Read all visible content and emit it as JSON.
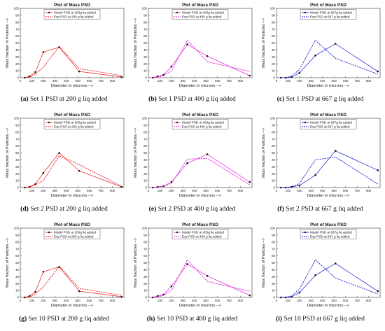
{
  "chart_data": [
    {
      "type": "line",
      "panel": "a",
      "title": "Plot of Mass PSD",
      "xlabel": "Diameter in microns -->",
      "ylabel": "Mass fraction of Particles -->",
      "xlim": [
        0,
        900
      ],
      "ylim": [
        0,
        100
      ],
      "xticks": [
        0,
        100,
        200,
        300,
        400,
        500,
        600,
        700,
        800
      ],
      "yticks": [
        0,
        10,
        20,
        30,
        40,
        50,
        60,
        70,
        80,
        90,
        100
      ],
      "legend_position": "top",
      "color": "#e8161a",
      "caption_label": "(a)",
      "caption_text": " Set 1 PSD at 200 g liq added",
      "series": [
        {
          "name": "Model PSD at 200g liq added",
          "style": "solid-dot",
          "x": [
            38,
            80,
            131,
            200,
            338,
            512,
            880
          ],
          "y": [
            0,
            2,
            8,
            37,
            44,
            9,
            1
          ]
        },
        {
          "name": "Exp PSD at 200 g liq added",
          "style": "dashed",
          "x": [
            38,
            80,
            131,
            200,
            338,
            512,
            880
          ],
          "y": [
            0,
            1,
            5,
            15,
            45,
            13,
            3
          ]
        }
      ]
    },
    {
      "type": "line",
      "panel": "b",
      "title": "Plot of Mass PSD",
      "xlabel": "Diameter in microns -->",
      "ylabel": "Mass fraction of Particles -->",
      "xlim": [
        0,
        900
      ],
      "ylim": [
        0,
        100
      ],
      "xticks": [
        0,
        100,
        200,
        300,
        400,
        500,
        600,
        700,
        800
      ],
      "yticks": [
        0,
        10,
        20,
        30,
        40,
        50,
        60,
        70,
        80,
        90,
        100
      ],
      "legend_position": "top",
      "color": "#e01fd8",
      "caption_label": "(b)",
      "caption_text": " Set 1 PSD at 400 g liq added",
      "series": [
        {
          "name": "Model PSD at 400g liq added",
          "style": "solid-dot",
          "x": [
            38,
            80,
            131,
            200,
            338,
            512,
            880
          ],
          "y": [
            0,
            2,
            4,
            16,
            48,
            31,
            3
          ]
        },
        {
          "name": "Exp PSD at 400 g liq added",
          "style": "dashed",
          "x": [
            38,
            80,
            131,
            200,
            338,
            512,
            880
          ],
          "y": [
            0,
            1,
            3,
            10,
            54,
            23,
            9
          ]
        }
      ]
    },
    {
      "type": "line",
      "panel": "c",
      "title": "Plot of Mass PSD",
      "xlabel": "Diameter in microns -->",
      "ylabel": "Mass fraction of Particles -->",
      "xlim": [
        0,
        900
      ],
      "ylim": [
        0,
        100
      ],
      "xticks": [
        0,
        100,
        200,
        300,
        400,
        500,
        600,
        700,
        800
      ],
      "yticks": [
        0,
        10,
        20,
        30,
        40,
        50,
        60,
        70,
        80,
        90,
        100
      ],
      "legend_position": "top",
      "color": "#1515d6",
      "caption_label": "(c)",
      "caption_text": " Set 1 PSD at 667 g liq added",
      "series": [
        {
          "name": "Model PSD at 667g liq added",
          "style": "solid-dot",
          "x": [
            38,
            80,
            131,
            200,
            338,
            512,
            880
          ],
          "y": [
            0,
            0,
            1,
            7,
            32,
            49,
            9
          ]
        },
        {
          "name": "Exp PSD at 667 g liq added",
          "style": "dashed",
          "x": [
            38,
            80,
            131,
            200,
            338,
            512,
            880
          ],
          "y": [
            0,
            0,
            2,
            12,
            54,
            28,
            5
          ]
        }
      ]
    },
    {
      "type": "line",
      "panel": "d",
      "title": "Plot of Mass PSD",
      "xlabel": "Diameter in microns -->",
      "ylabel": "Mass fraction of Particles -->",
      "xlim": [
        0,
        900
      ],
      "ylim": [
        0,
        100
      ],
      "xticks": [
        0,
        100,
        200,
        300,
        400,
        500,
        600,
        700,
        800
      ],
      "yticks": [
        0,
        10,
        20,
        30,
        40,
        50,
        60,
        70,
        80,
        90,
        100
      ],
      "legend_position": "top",
      "color": "#e8161a",
      "caption_label": "(d)",
      "caption_text": " Set 2 PSD at 200 g liq added",
      "series": [
        {
          "name": "Model PSD at 200g liq added",
          "style": "solid-dot",
          "x": [
            38,
            80,
            131,
            200,
            338,
            512,
            880
          ],
          "y": [
            0,
            1,
            5,
            21,
            50,
            24,
            1
          ]
        },
        {
          "name": "Exp PSD at 200 g liq added",
          "style": "dashed",
          "x": [
            38,
            80,
            131,
            200,
            338,
            512,
            880
          ],
          "y": [
            0,
            1,
            4,
            10,
            46,
            33,
            2
          ]
        }
      ]
    },
    {
      "type": "line",
      "panel": "e",
      "title": "Plot of Mass PSD",
      "xlabel": "Diameter in microns -->",
      "ylabel": "Mass fraction of Particles -->",
      "xlim": [
        0,
        900
      ],
      "ylim": [
        0,
        100
      ],
      "xticks": [
        0,
        100,
        200,
        300,
        400,
        500,
        600,
        700,
        800
      ],
      "yticks": [
        0,
        10,
        20,
        30,
        40,
        50,
        60,
        70,
        80,
        90,
        100
      ],
      "legend_position": "top",
      "color": "#e01fd8",
      "caption_label": "(e)",
      "caption_text": " Set 2 PSD at 400 g liq added",
      "series": [
        {
          "name": "Model PSD at 400g liq added",
          "style": "solid-dot",
          "x": [
            38,
            80,
            131,
            200,
            338,
            512,
            880
          ],
          "y": [
            0,
            1,
            2,
            8,
            35,
            48,
            8
          ]
        },
        {
          "name": "Exp PSD at 400 g liq added",
          "style": "dashed",
          "x": [
            38,
            80,
            131,
            200,
            338,
            512,
            880
          ],
          "y": [
            0,
            1,
            2,
            6,
            41,
            42,
            4
          ]
        }
      ]
    },
    {
      "type": "line",
      "panel": "f",
      "title": "Plot of Mass PSD",
      "xlabel": "Diameter in microns -->",
      "ylabel": "Mass fraction of Particles -->",
      "xlim": [
        0,
        900
      ],
      "ylim": [
        0,
        100
      ],
      "xticks": [
        0,
        100,
        200,
        300,
        400,
        500,
        600,
        700,
        800
      ],
      "yticks": [
        0,
        10,
        20,
        30,
        40,
        50,
        60,
        70,
        80,
        90,
        100
      ],
      "legend_position": "top",
      "color": "#1515d6",
      "caption_label": "(f)",
      "caption_text": " Set 2 PSD at 667 g liq added",
      "series": [
        {
          "name": "Model PSD at 667g liq added",
          "style": "solid-dot",
          "x": [
            38,
            80,
            131,
            200,
            338,
            512,
            880
          ],
          "y": [
            0,
            0,
            1,
            3,
            18,
            53,
            25
          ]
        },
        {
          "name": "Exp PSD at 667 g liq added",
          "style": "dashed",
          "x": [
            38,
            80,
            131,
            200,
            338,
            512,
            880
          ],
          "y": [
            0,
            0,
            1,
            6,
            40,
            44,
            5
          ]
        }
      ]
    },
    {
      "type": "line",
      "panel": "g",
      "title": "Plot of Mass PSD",
      "xlabel": "Diameter in microns -->",
      "ylabel": "Mass fraction of Particles -->",
      "xlim": [
        0,
        900
      ],
      "ylim": [
        0,
        100
      ],
      "xticks": [
        0,
        100,
        200,
        300,
        400,
        500,
        600,
        700,
        800
      ],
      "yticks": [
        0,
        10,
        20,
        30,
        40,
        50,
        60,
        70,
        80,
        90,
        100
      ],
      "legend_position": "top",
      "color": "#e8161a",
      "caption_label": "(g)",
      "caption_text": " Set 10 PSD at 200 g liq added",
      "series": [
        {
          "name": "Model PSD at 200g liq added",
          "style": "solid-dot",
          "x": [
            38,
            80,
            131,
            200,
            338,
            512,
            880
          ],
          "y": [
            0,
            2,
            8,
            37,
            44,
            9,
            1
          ]
        },
        {
          "name": "Exp PSD at 200 g liq added",
          "style": "dashed",
          "x": [
            38,
            80,
            131,
            200,
            338,
            512,
            880
          ],
          "y": [
            0,
            1,
            5,
            15,
            45,
            13,
            3
          ]
        }
      ]
    },
    {
      "type": "line",
      "panel": "h",
      "title": "Plot of Mass PSD",
      "xlabel": "Diameter in microns -->",
      "ylabel": "Mass fraction of Particles -->",
      "xlim": [
        0,
        900
      ],
      "ylim": [
        0,
        100
      ],
      "xticks": [
        0,
        100,
        200,
        300,
        400,
        500,
        600,
        700,
        800
      ],
      "yticks": [
        0,
        10,
        20,
        30,
        40,
        50,
        60,
        70,
        80,
        90,
        100
      ],
      "legend_position": "top",
      "color": "#e01fd8",
      "caption_label": "(h)",
      "caption_text": " Set 10 PSD at 400 g liq added",
      "series": [
        {
          "name": "Model PSD at 400g liq added",
          "style": "solid-dot",
          "x": [
            38,
            80,
            131,
            200,
            338,
            512,
            880
          ],
          "y": [
            0,
            2,
            4,
            16,
            48,
            31,
            3
          ]
        },
        {
          "name": "Exp PSD at 400 g liq added",
          "style": "dashed",
          "x": [
            38,
            80,
            131,
            200,
            338,
            512,
            880
          ],
          "y": [
            0,
            1,
            3,
            10,
            54,
            23,
            9
          ]
        }
      ]
    },
    {
      "type": "line",
      "panel": "i",
      "title": "Plot of Mass PSD",
      "xlabel": "Diameter in microns -->",
      "ylabel": "Mass fraction of Particles -->",
      "xlim": [
        0,
        900
      ],
      "ylim": [
        0,
        100
      ],
      "xticks": [
        0,
        100,
        200,
        300,
        400,
        500,
        600,
        700,
        800
      ],
      "yticks": [
        0,
        10,
        20,
        30,
        40,
        50,
        60,
        70,
        80,
        90,
        100
      ],
      "legend_position": "top",
      "color": "#1515d6",
      "caption_label": "(i)",
      "caption_text": " Set 10 PSD at 667 g liq added",
      "series": [
        {
          "name": "Model PSD at 667g liq added",
          "style": "solid-dot",
          "x": [
            38,
            80,
            131,
            200,
            338,
            512,
            880
          ],
          "y": [
            0,
            0,
            1,
            7,
            32,
            49,
            9
          ]
        },
        {
          "name": "Exp PSD at 667 g liq added",
          "style": "dashed",
          "x": [
            38,
            80,
            131,
            200,
            338,
            512,
            880
          ],
          "y": [
            0,
            0,
            2,
            12,
            54,
            28,
            5
          ]
        }
      ]
    }
  ]
}
